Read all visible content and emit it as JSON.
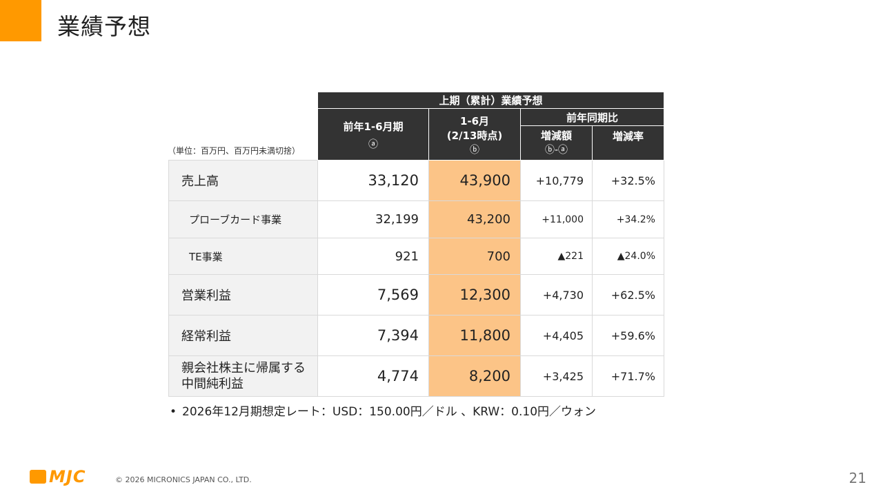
{
  "title": "業績予想",
  "unit_note": "（単位：百万円、百万円未満切捨）",
  "table": {
    "header_title": "上期（累計）業績予想",
    "col_prev": "前年1-6月期",
    "col_prev_mark": "ⓐ",
    "col_curr_line1": "1-6月",
    "col_curr_line2": "(2/13時点)",
    "col_curr_mark": "ⓑ",
    "col_yoy": "前年同期比",
    "col_diff": "増減額",
    "col_diff_mark": "ⓑ-ⓐ",
    "col_rate": "増減率",
    "rows": [
      {
        "label": "売上高",
        "prev": "33,120",
        "curr": "43,900",
        "diff": "+10,779",
        "rate": "+32.5%"
      },
      {
        "label": "プローブカード事業",
        "prev": "32,199",
        "curr": "43,200",
        "diff": "+11,000",
        "rate": "+34.2%"
      },
      {
        "label": "TE事業",
        "prev": "921",
        "curr": "700",
        "diff": "▲221",
        "rate": "▲24.0%"
      },
      {
        "label": "営業利益",
        "prev": "7,569",
        "curr": "12,300",
        "diff": "+4,730",
        "rate": "+62.5%"
      },
      {
        "label": "経常利益",
        "prev": "7,394",
        "curr": "11,800",
        "diff": "+4,405",
        "rate": "+59.6%"
      },
      {
        "label_line1": "親会社株主に帰属する",
        "label_line2": "中間純利益",
        "prev": "4,774",
        "curr": "8,200",
        "diff": "+3,425",
        "rate": "+71.7%"
      }
    ]
  },
  "footnote": {
    "bullet": "•",
    "text": "2026年12月期想定レート：USD：150.00円／ドル 、KRW：0.10円／ウォン"
  },
  "footer": {
    "logo_text": "MJC",
    "copyright": "© 2026 MICRONICS JAPAN CO., LTD.",
    "page_number": "21"
  },
  "colors": {
    "accent": "#ff9900",
    "header_bg": "#333333",
    "highlight": "#fcc487",
    "label_bg": "#f2f2f2"
  }
}
